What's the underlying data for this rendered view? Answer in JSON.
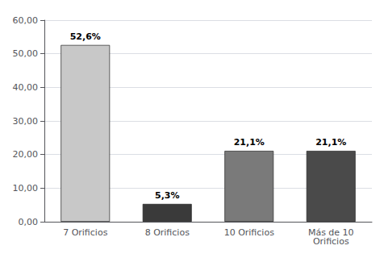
{
  "chart_data": {
    "type": "bar",
    "categories": [
      "7 Orificios",
      "8 Orificios",
      "10 Orificios",
      "Más de 10\nOrificios"
    ],
    "values": [
      52.6,
      5.3,
      21.1,
      21.1
    ],
    "value_labels": [
      "52,6%",
      "5,3%",
      "21,1%",
      "21,1%"
    ],
    "data_labels": true,
    "colors": [
      "#c8c8c8",
      "#3a3a3a",
      "#7a7a7a",
      "#4a4a4a"
    ],
    "ylim": [
      0,
      60
    ],
    "yticks": [
      {
        "value": 0,
        "label": "0,00"
      },
      {
        "value": 10,
        "label": "10,00"
      },
      {
        "value": 20,
        "label": "20,00"
      },
      {
        "value": 30,
        "label": "30,00"
      },
      {
        "value": 40,
        "label": "40,00"
      },
      {
        "value": 50,
        "label": "50,00"
      },
      {
        "value": 60,
        "label": "60,00"
      }
    ],
    "grid": true
  }
}
